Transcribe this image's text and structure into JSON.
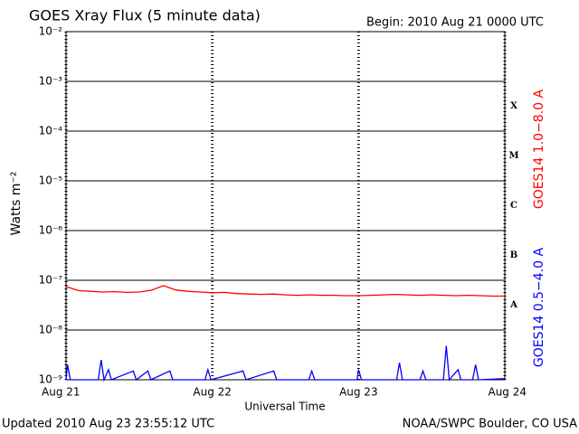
{
  "chart_data": {
    "type": "line",
    "title": "GOES Xray Flux (5 minute data)",
    "subtitle": "Begin:  2010 Aug 21 0000 UTC",
    "xlabel": "Universal Time",
    "ylabel": "Watts m⁻²",
    "footer_left": "Updated 2010 Aug 23 23:55:12 UTC",
    "footer_right": "NOAA/SWPC Boulder, CO USA",
    "log_y": true,
    "grid": true,
    "xlim": [
      0,
      3
    ],
    "xticks": [
      {
        "value": 0,
        "label": "Aug 21"
      },
      {
        "value": 1,
        "label": "Aug 22"
      },
      {
        "value": 2,
        "label": "Aug 23"
      },
      {
        "value": 3,
        "label": "Aug 24"
      }
    ],
    "ylim": [
      1e-09,
      0.01
    ],
    "yticks": [
      {
        "value": 1e-09,
        "label": "10⁻⁹"
      },
      {
        "value": 1e-08,
        "label": "10⁻⁸"
      },
      {
        "value": 1e-07,
        "label": "10⁻⁷"
      },
      {
        "value": 1e-06,
        "label": "10⁻⁶"
      },
      {
        "value": 1e-05,
        "label": "10⁻⁵"
      },
      {
        "value": 0.0001,
        "label": "10⁻⁴"
      },
      {
        "value": 0.001,
        "label": "10⁻³"
      },
      {
        "value": 0.01,
        "label": "10⁻²"
      }
    ],
    "flare_classes": [
      {
        "label": "A",
        "value": 1e-08
      },
      {
        "label": "B",
        "value": 1e-07
      },
      {
        "label": "C",
        "value": 1e-06
      },
      {
        "label": "M",
        "value": 1e-05
      },
      {
        "label": "X",
        "value": 0.0001
      }
    ],
    "series": [
      {
        "name": "GOES14 1.0−8.0 A",
        "color": "#ff0000",
        "x": [
          0,
          0.0833,
          0.1667,
          0.25,
          0.3333,
          0.4167,
          0.5,
          0.5833,
          0.6667,
          0.75,
          0.8333,
          0.9167,
          1,
          1.0833,
          1.1667,
          1.25,
          1.3333,
          1.4167,
          1.5,
          1.5833,
          1.6667,
          1.75,
          1.8333,
          1.9167,
          2,
          2.0833,
          2.1667,
          2.25,
          2.3333,
          2.4167,
          2.5,
          2.5833,
          2.6667,
          2.75,
          2.8333,
          2.9167,
          3
        ],
        "values": [
          7.5e-08,
          6.2e-08,
          6e-08,
          5.8e-08,
          5.9e-08,
          5.7e-08,
          5.8e-08,
          6.3e-08,
          7.8e-08,
          6.4e-08,
          6e-08,
          5.8e-08,
          5.6e-08,
          5.7e-08,
          5.4e-08,
          5.3e-08,
          5.2e-08,
          5.3e-08,
          5.1e-08,
          5e-08,
          5.1e-08,
          5e-08,
          5e-08,
          4.9e-08,
          4.9e-08,
          5e-08,
          5.1e-08,
          5.2e-08,
          5.1e-08,
          5e-08,
          5.1e-08,
          5e-08,
          4.9e-08,
          5e-08,
          4.9e-08,
          4.8e-08,
          4.8e-08
        ]
      },
      {
        "name": "GOES14 0.5−4.0 A",
        "color": "#0000ff",
        "x": [
          0,
          0.01,
          0.03,
          0.22,
          0.24,
          0.26,
          0.29,
          0.31,
          0.46,
          0.48,
          0.56,
          0.58,
          0.71,
          0.73,
          0.95,
          0.97,
          0.99,
          1.21,
          1.23,
          1.42,
          1.44,
          1.66,
          1.68,
          1.7,
          1.99,
          2,
          2.02,
          2.26,
          2.28,
          2.3,
          2.42,
          2.44,
          2.46,
          2.58,
          2.6,
          2.62,
          2.68,
          2.7,
          2.78,
          2.8,
          2.82,
          3
        ],
        "values": [
          1e-09,
          2e-09,
          1e-09,
          1e-09,
          2.5e-09,
          1e-09,
          1.6e-09,
          1e-09,
          1.5e-09,
          1e-09,
          1.5e-09,
          1e-09,
          1.5e-09,
          1e-09,
          1e-09,
          1.6e-09,
          1e-09,
          1.5e-09,
          1e-09,
          1.5e-09,
          1e-09,
          1e-09,
          1.5e-09,
          1e-09,
          1e-09,
          1.6e-09,
          1e-09,
          1e-09,
          2.2e-09,
          1e-09,
          1e-09,
          1.5e-09,
          1e-09,
          1e-09,
          4.8e-09,
          1e-09,
          1.6e-09,
          1e-09,
          1e-09,
          2e-09,
          1e-09,
          1.05e-09
        ]
      }
    ]
  }
}
